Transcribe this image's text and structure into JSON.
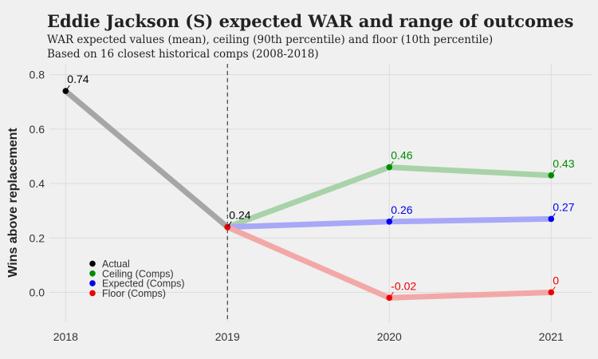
{
  "title": "Eddie Jackson (S) expected WAR and range of outcomes",
  "subtitle_line1": "WAR expected values (mean), ceiling (90th percentile) and floor (10th percentile)",
  "subtitle_line2": "Based on 16 closest historical comps (2008-2018)",
  "chart_data": {
    "type": "line",
    "title": "Eddie Jackson (S) expected WAR and range of outcomes",
    "xlabel": "",
    "ylabel": "Wins above replacement",
    "categories": [
      "2018",
      "2019",
      "2020",
      "2021"
    ],
    "xlim": [
      2017.9,
      2021.25
    ],
    "ylim": [
      -0.11,
      0.84
    ],
    "yticks": [
      0.0,
      0.2,
      0.4,
      0.6,
      0.8
    ],
    "ytick_labels": [
      "0.0",
      "0.2",
      "0.4",
      "0.6",
      "0.8"
    ],
    "grid": true,
    "vline": 2019,
    "legend_position": "lower-left",
    "series": [
      {
        "name": "Actual",
        "color": "#000000",
        "line_color": "#a6a6a6",
        "x": [
          2018,
          2019
        ],
        "y": [
          0.74,
          0.24
        ],
        "labels": [
          "0.74",
          "0.24"
        ]
      },
      {
        "name": "Ceiling (Comps)",
        "color": "#008b00",
        "line_color": "#a8d3a8",
        "x": [
          2019,
          2020,
          2021
        ],
        "y": [
          0.24,
          0.46,
          0.43
        ],
        "labels": [
          "",
          "0.46",
          "0.43"
        ]
      },
      {
        "name": "Expected (Comps)",
        "color": "#0000ee",
        "line_color": "#a8a8f8",
        "x": [
          2019,
          2020,
          2021
        ],
        "y": [
          0.24,
          0.26,
          0.27
        ],
        "labels": [
          "",
          "0.26",
          "0.27"
        ]
      },
      {
        "name": "Floor (Comps)",
        "color": "#ee0000",
        "line_color": "#f3a8a8",
        "x": [
          2019,
          2020,
          2021
        ],
        "y": [
          0.24,
          -0.02,
          0.0
        ],
        "labels": [
          "",
          "-0.02",
          "0"
        ]
      }
    ]
  }
}
